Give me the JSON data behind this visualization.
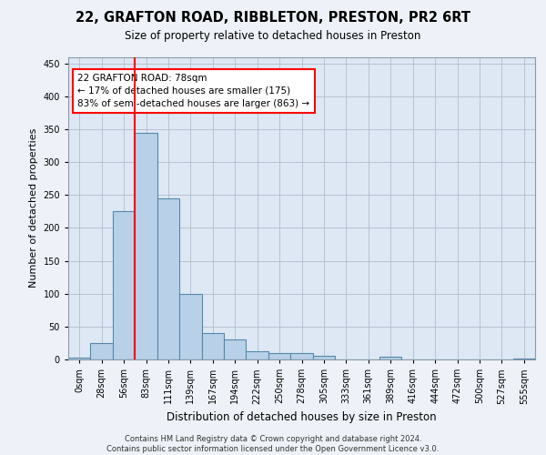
{
  "title_line1": "22, GRAFTON ROAD, RIBBLETON, PRESTON, PR2 6RT",
  "title_line2": "Size of property relative to detached houses in Preston",
  "xlabel": "Distribution of detached houses by size in Preston",
  "ylabel": "Number of detached properties",
  "bin_labels": [
    "0sqm",
    "28sqm",
    "56sqm",
    "83sqm",
    "111sqm",
    "139sqm",
    "167sqm",
    "194sqm",
    "222sqm",
    "250sqm",
    "278sqm",
    "305sqm",
    "333sqm",
    "361sqm",
    "389sqm",
    "416sqm",
    "444sqm",
    "472sqm",
    "500sqm",
    "527sqm",
    "555sqm"
  ],
  "bar_values": [
    3,
    25,
    225,
    345,
    245,
    100,
    40,
    30,
    13,
    10,
    10,
    5,
    0,
    0,
    4,
    0,
    0,
    0,
    0,
    0,
    1
  ],
  "bar_color": "#b8d0e8",
  "bar_edge_color": "#5588aa",
  "vline_bin_index": 3,
  "annotation_text": "22 GRAFTON ROAD: 78sqm\n← 17% of detached houses are smaller (175)\n83% of semi-detached houses are larger (863) →",
  "ylim": [
    0,
    460
  ],
  "yticks": [
    0,
    50,
    100,
    150,
    200,
    250,
    300,
    350,
    400,
    450
  ],
  "footer_text": "Contains HM Land Registry data © Crown copyright and database right 2024.\nContains public sector information licensed under the Open Government Licence v3.0.",
  "background_color": "#eef2f8",
  "plot_background_color": "#dde8f4"
}
